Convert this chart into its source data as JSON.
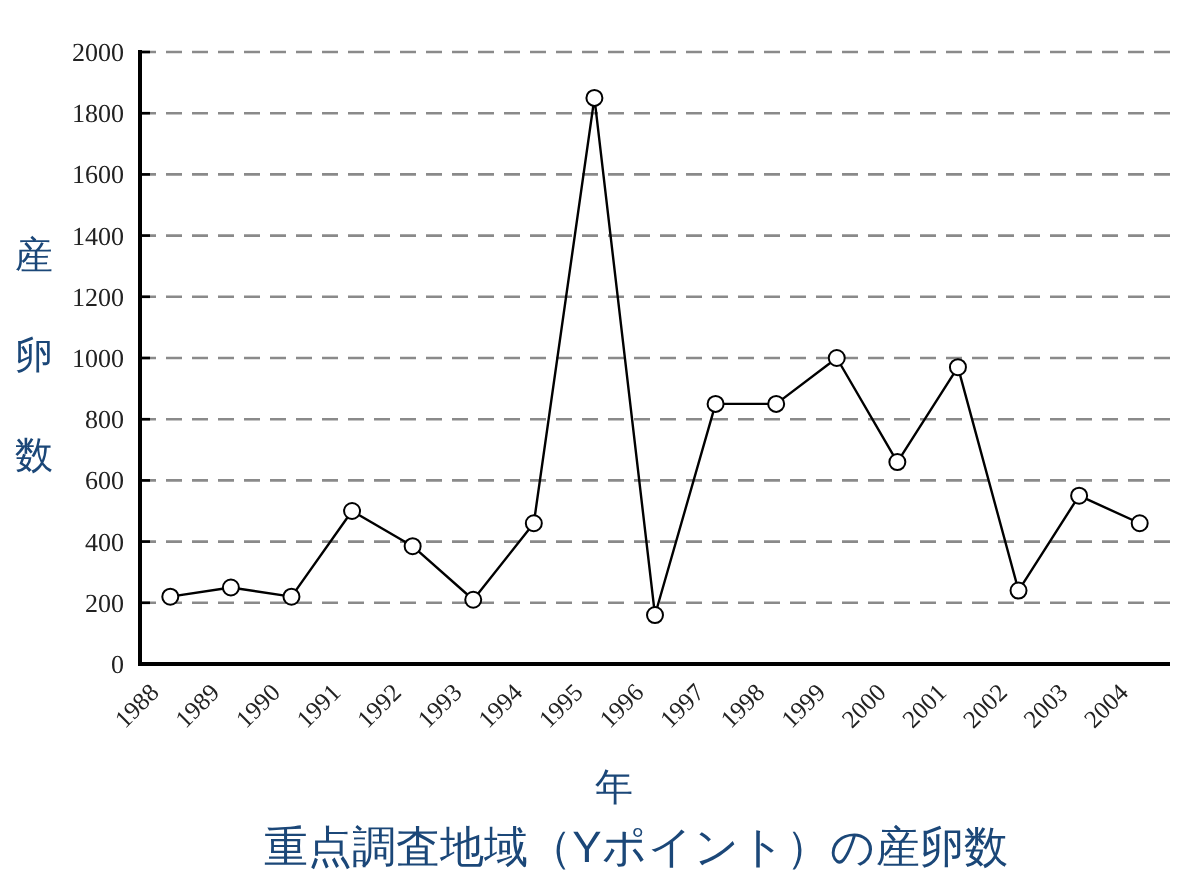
{
  "chart_data": {
    "type": "line",
    "title": "重点調査地域（Yポイント）の産卵数",
    "xlabel": "年",
    "ylabel": "産卵数",
    "categories": [
      "1988",
      "1989",
      "1990",
      "1991",
      "1992",
      "1993",
      "1994",
      "1995",
      "1996",
      "1997",
      "1998",
      "1999",
      "2000",
      "2001",
      "2002",
      "2003",
      "2004"
    ],
    "series": [
      {
        "color": "#000000",
        "values": [
          220,
          250,
          220,
          500,
          385,
          210,
          460,
          1850,
          160,
          850,
          850,
          1000,
          660,
          970,
          240,
          550,
          460
        ]
      }
    ],
    "ylim": [
      0,
      2000
    ],
    "yticks": [
      0,
      200,
      400,
      600,
      800,
      1000,
      1200,
      1400,
      1600,
      1800,
      2000
    ],
    "grid": "y",
    "marker": "circle",
    "line_style": "solid"
  }
}
